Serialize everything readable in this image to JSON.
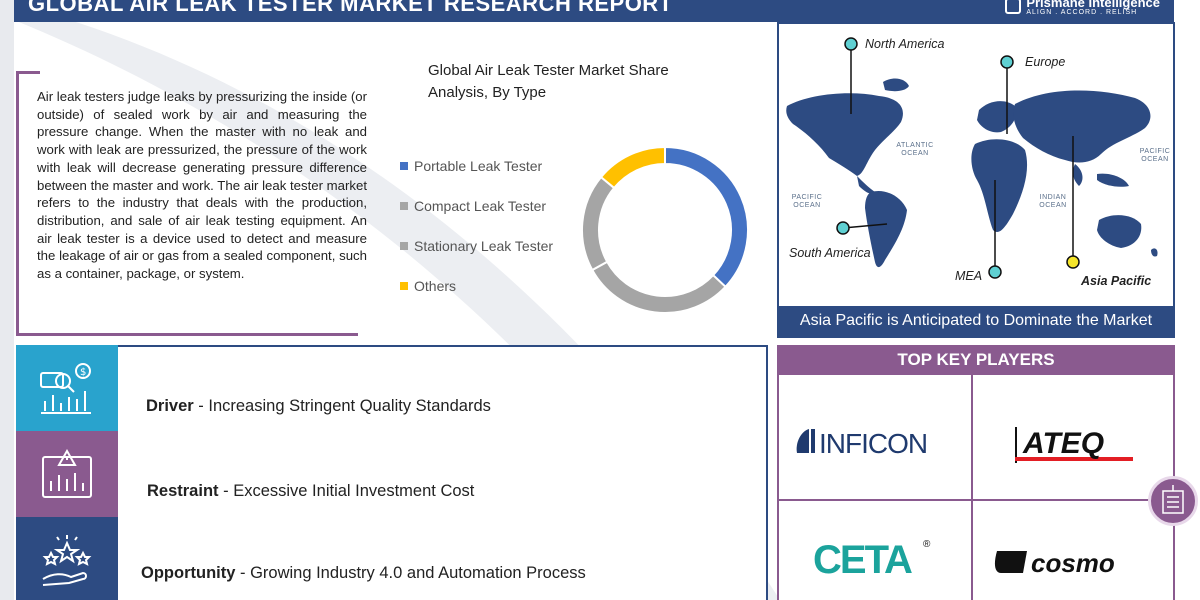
{
  "header": {
    "title": "GLOBAL AIR LEAK TESTER MARKET RESEARCH REPORT",
    "brand_name": "Prismane Intelligence",
    "brand_tagline": "ALIGN . ACCORD . RELISH"
  },
  "description": "Air leak testers judge leaks by pressurizing the inside (or outside) of sealed work by air and measuring the pressure change. When the master with no leak and work with leak are pressurized, the pressure of the work with leak will decrease generating pressure difference between the master and work. The air leak tester market refers to the industry that deals with the production, distribution, and sale of air leak testing equipment. An air leak tester is a device used to detect and measure the leakage of air or gas from a sealed component, such as a container, package, or system.",
  "chart_data": {
    "type": "pie",
    "title": "Global Air Leak Tester Market Share Analysis, By Type",
    "categories": [
      "Portable Leak Tester",
      "Compact Leak Tester",
      "Stationary Leak Tester",
      "Others"
    ],
    "values": [
      37,
      30,
      19,
      14
    ],
    "colors": [
      "#4472c4",
      "#a5a5a5",
      "#a5a5a5",
      "#ffc000"
    ],
    "legend_position": "left"
  },
  "map": {
    "regions": [
      "North America",
      "Europe",
      "South America",
      "MEA",
      "Asia Pacific"
    ],
    "highlight_region": "Asia Pacific",
    "oceans": [
      "ATLANTIC OCEAN",
      "PACIFIC OCEAN",
      "PACIFIC OCEAN",
      "INDIAN OCEAN"
    ],
    "footer": "Asia Pacific is Anticipated to Dominate the Market"
  },
  "factors": [
    {
      "type": "Driver",
      "text": "Increasing Stringent Quality Standards",
      "color": "#29a3cd",
      "icon": "analytics-icon"
    },
    {
      "type": "Restraint",
      "text": "Excessive Initial Investment Cost",
      "color": "#8a5a8f",
      "icon": "warning-chart-icon"
    },
    {
      "type": "Opportunity",
      "text": "Growing Industry 4.0 and Automation Process",
      "color": "#2d4b82",
      "icon": "hand-stars-icon"
    }
  ],
  "key_players": {
    "title": "TOP KEY PLAYERS",
    "players": [
      "INFICON",
      "ATEQ",
      "CETA",
      "cosmo"
    ]
  }
}
